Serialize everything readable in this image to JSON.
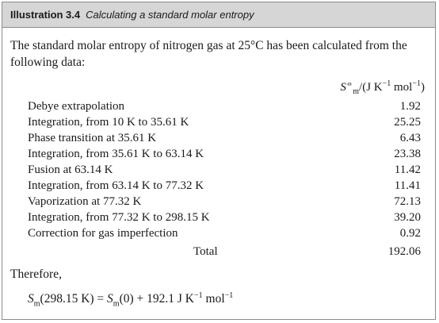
{
  "header": {
    "label": "Illustration 3.4",
    "title": "Calculating a standard molar entropy"
  },
  "intro": "The standard molar entropy of nitrogen gas at 25°C has been calculated from the following data:",
  "column_header": {
    "symbol": "S",
    "superscript": "⦵",
    "subscript": "m",
    "units_open": "/(J K",
    "exp1": "−1",
    "mol": " mol",
    "exp2": "−1",
    "units_close": ")"
  },
  "rows": [
    {
      "desc": "Debye extrapolation",
      "value": "1.92"
    },
    {
      "desc": "Integration, from 10 K to 35.61 K",
      "value": "25.25"
    },
    {
      "desc": "Phase transition at 35.61 K",
      "value": "6.43"
    },
    {
      "desc": "Integration, from 35.61 K to 63.14 K",
      "value": "23.38"
    },
    {
      "desc": "Fusion at 63.14 K",
      "value": "11.42"
    },
    {
      "desc": "Integration, from 63.14 K to 77.32 K",
      "value": "11.41"
    },
    {
      "desc": "Vaporization at 77.32 K",
      "value": "72.13"
    },
    {
      "desc": "Integration, from 77.32 K to 298.15 K",
      "value": "39.20"
    },
    {
      "desc": "Correction for gas imperfection",
      "value": "0.92"
    }
  ],
  "total": {
    "label": "Total",
    "value": "192.06"
  },
  "therefore": "Therefore,",
  "result": {
    "lhs_symbol": "S",
    "lhs_sub": "m",
    "lhs_arg": "(298.15 K) = ",
    "rhs_symbol": "S",
    "rhs_sub": "m",
    "rhs_rest": "(0) + 192.1 J K",
    "exp1": "−1",
    "mol": " mol",
    "exp2": "−1"
  }
}
